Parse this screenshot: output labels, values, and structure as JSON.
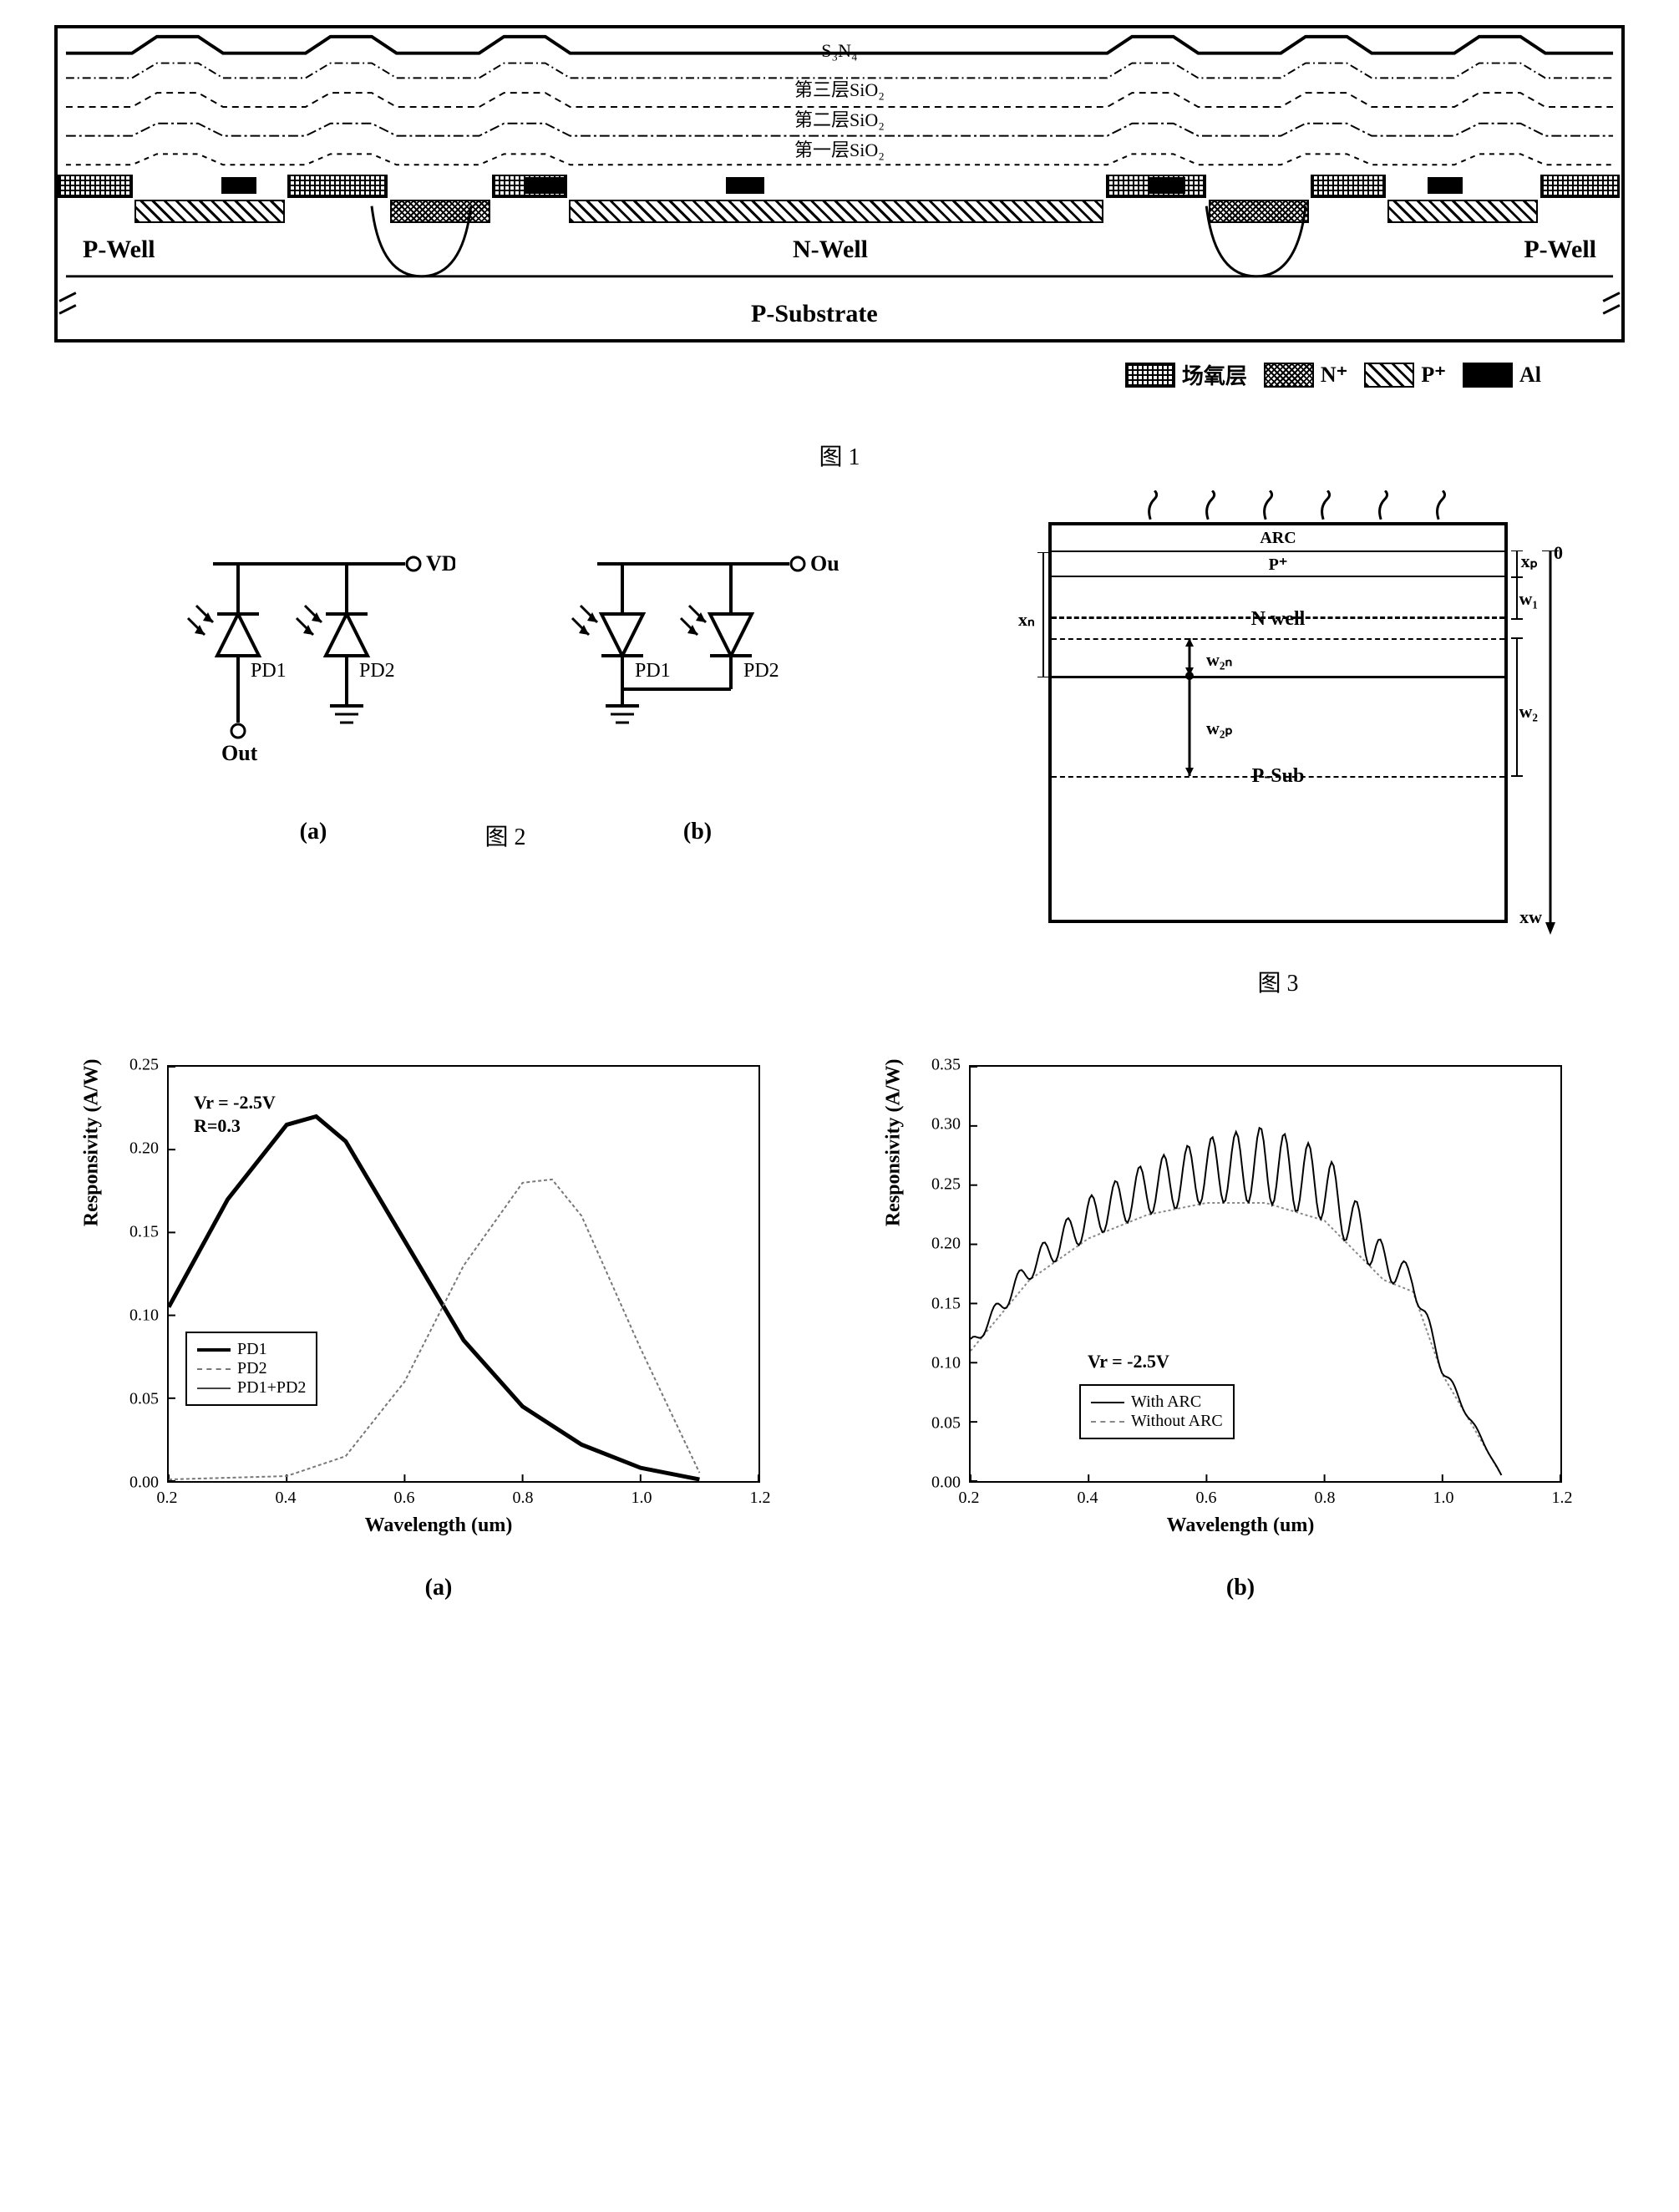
{
  "fig1": {
    "caption": "图 1",
    "passivation_layers": [
      "S₃N₄",
      "第三层SiO₂",
      "第二层SiO₂",
      "第一层SiO₂"
    ],
    "wells": {
      "pwell_left": "P-Well",
      "nwell": "N-Well",
      "pwell_right": "P-Well",
      "substrate": "P-Substrate"
    },
    "legend": {
      "oxide": "场氧层",
      "nplus": "N⁺",
      "pplus": "P⁺",
      "al": "Al"
    }
  },
  "fig2": {
    "caption": "图 2",
    "sub_a": "(a)",
    "sub_b": "(b)",
    "labels": {
      "vdd": "VDD",
      "out": "Out",
      "pd1": "PD1",
      "pd2": "PD2"
    }
  },
  "fig3": {
    "caption": "图 3",
    "layers": {
      "arc": "ARC",
      "pplus": "P⁺",
      "nwell": "N well",
      "psub": "P-Sub"
    },
    "dims": {
      "xp": "xₚ",
      "w1": "w₁",
      "xn": "xₙ",
      "w2n": "w₂ₙ",
      "w2p": "w₂ₚ",
      "w2": "w₂",
      "xw": "xw",
      "zero": "0"
    }
  },
  "fig4a": {
    "sub": "(a)",
    "xlabel": "Wavelength (um)",
    "ylabel": "Responsivity (A/W)",
    "annotations": [
      "Vr = -2.5V",
      "R=0.3"
    ],
    "legend": [
      "PD1",
      "PD2",
      "PD1+PD2"
    ],
    "xlim": [
      0.2,
      1.2
    ],
    "ylim": [
      0.0,
      0.25
    ],
    "xticks": [
      0.2,
      0.4,
      0.6,
      0.8,
      1.0,
      1.2
    ],
    "yticks": [
      0.0,
      0.05,
      0.1,
      0.15,
      0.2,
      0.25
    ],
    "series_pd1": {
      "x": [
        0.2,
        0.3,
        0.4,
        0.45,
        0.5,
        0.6,
        0.7,
        0.8,
        0.9,
        1.0,
        1.1
      ],
      "y": [
        0.105,
        0.17,
        0.215,
        0.22,
        0.205,
        0.145,
        0.085,
        0.045,
        0.022,
        0.008,
        0.001
      ],
      "color": "#000000",
      "width": 5
    },
    "series_pd2": {
      "x": [
        0.2,
        0.4,
        0.5,
        0.6,
        0.7,
        0.8,
        0.85,
        0.9,
        1.0,
        1.1
      ],
      "y": [
        0.001,
        0.003,
        0.015,
        0.06,
        0.13,
        0.18,
        0.182,
        0.16,
        0.08,
        0.005
      ],
      "color": "#777777",
      "width": 2,
      "dash": "4 3"
    }
  },
  "fig4b": {
    "sub": "(b)",
    "xlabel": "Wavelength (um)",
    "ylabel": "Responsivity (A/W)",
    "annotations": [
      "Vr = -2.5V"
    ],
    "legend": [
      "With ARC",
      "Without ARC"
    ],
    "xlim": [
      0.2,
      1.2
    ],
    "ylim": [
      0.0,
      0.35
    ],
    "xticks": [
      0.2,
      0.4,
      0.6,
      0.8,
      1.0,
      1.2
    ],
    "yticks": [
      0.0,
      0.05,
      0.1,
      0.15,
      0.2,
      0.25,
      0.3,
      0.35
    ],
    "series_without": {
      "x": [
        0.2,
        0.3,
        0.4,
        0.5,
        0.6,
        0.7,
        0.8,
        0.9,
        0.95,
        1.0,
        1.1
      ],
      "y": [
        0.11,
        0.17,
        0.205,
        0.225,
        0.235,
        0.235,
        0.22,
        0.17,
        0.16,
        0.09,
        0.005
      ],
      "color": "#888888",
      "width": 2,
      "dash": "3 3"
    },
    "series_with": {
      "base_x": [
        0.2,
        0.3,
        0.4,
        0.5,
        0.6,
        0.7,
        0.8,
        0.9,
        0.95,
        1.0,
        1.1
      ],
      "base_y": [
        0.12,
        0.19,
        0.24,
        0.27,
        0.29,
        0.3,
        0.28,
        0.2,
        0.18,
        0.1,
        0.005
      ],
      "oscillation_amp": 0.025,
      "oscillation_periods": 22,
      "color": "#000000",
      "width": 2
    }
  }
}
